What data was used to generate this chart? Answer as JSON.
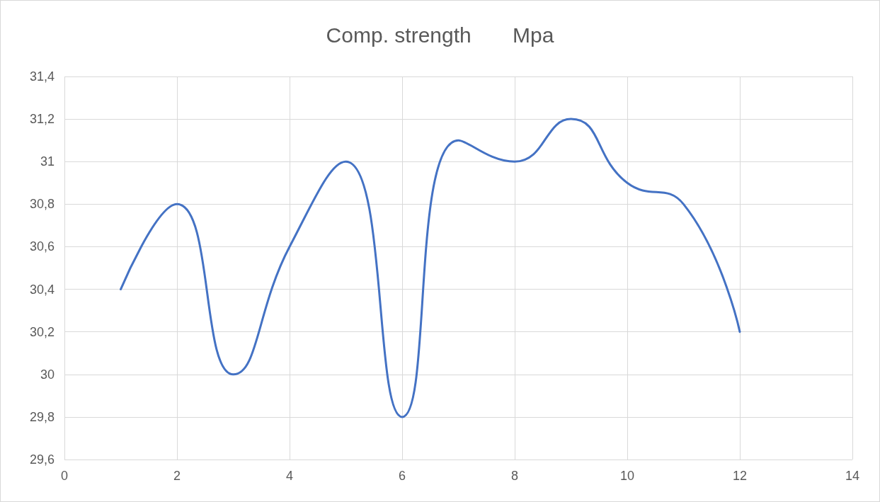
{
  "chart_data": {
    "type": "line",
    "title": "Comp. strength       Mpa",
    "x": [
      1,
      2,
      3,
      4,
      5,
      6,
      7,
      8,
      9,
      10,
      11,
      12
    ],
    "series": [
      {
        "color": "#4472c4",
        "values": [
          30.4,
          30.8,
          30.0,
          30.6,
          31.0,
          29.8,
          31.1,
          31.0,
          31.2,
          30.9,
          30.8,
          30.2
        ]
      }
    ],
    "xlim": [
      0,
      14
    ],
    "xticks": [
      0,
      2,
      4,
      6,
      8,
      10,
      12,
      14
    ],
    "ylim": [
      29.6,
      31.4
    ],
    "yticks": [
      {
        "value": 29.6,
        "label": "29,6"
      },
      {
        "value": 29.8,
        "label": "29,8"
      },
      {
        "value": 30,
        "label": "30"
      },
      {
        "value": 30.2,
        "label": "30,2"
      },
      {
        "value": 30.4,
        "label": "30,4"
      },
      {
        "value": 30.6,
        "label": "30,6"
      },
      {
        "value": 30.8,
        "label": "30,8"
      },
      {
        "value": 31,
        "label": "31"
      },
      {
        "value": 31.2,
        "label": "31,2"
      },
      {
        "value": 31.4,
        "label": "31,4"
      }
    ],
    "grid": true,
    "marker": "none",
    "line_style": "solid"
  }
}
